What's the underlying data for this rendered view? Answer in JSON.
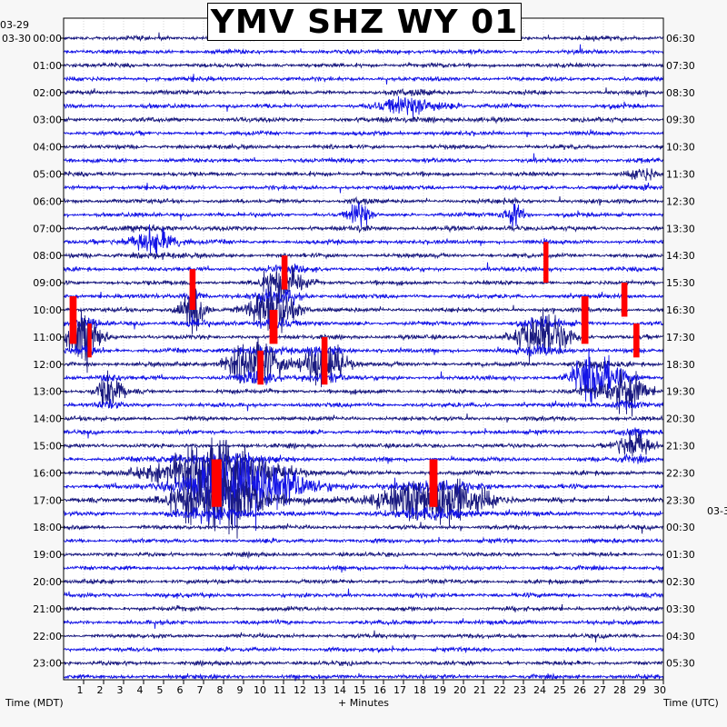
{
  "chart_data": {
    "type": "line",
    "title": "YMV SHZ WY 01",
    "xlabel": "+ Minutes",
    "left_axis_title": "Time (MDT)",
    "right_axis_title": "Time (UTC)",
    "x_ticks": [
      1,
      2,
      3,
      4,
      5,
      6,
      7,
      8,
      9,
      10,
      11,
      12,
      13,
      14,
      15,
      16,
      17,
      18,
      19,
      20,
      21,
      22,
      23,
      24,
      25,
      26,
      27,
      28,
      29,
      30
    ],
    "xlim": [
      0,
      30
    ],
    "left_date_labels": [
      "03-29",
      "03-30"
    ],
    "right_date_labels": [
      "03-3"
    ],
    "left_hour_labels": [
      "00:00",
      "01:00",
      "02:00",
      "03:00",
      "04:00",
      "05:00",
      "06:00",
      "07:00",
      "08:00",
      "09:00",
      "10:00",
      "11:00",
      "12:00",
      "13:00",
      "14:00",
      "15:00",
      "16:00",
      "17:00",
      "18:00",
      "19:00",
      "20:00",
      "21:00",
      "22:00",
      "23:00"
    ],
    "right_hour_labels": [
      "06:30",
      "07:30",
      "08:30",
      "09:30",
      "10:30",
      "11:30",
      "12:30",
      "13:30",
      "14:30",
      "15:30",
      "16:30",
      "17:30",
      "18:30",
      "19:30",
      "20:30",
      "21:30",
      "22:30",
      "23:30",
      "00:30",
      "01:30",
      "02:30",
      "03:30",
      "04:30",
      "05:30"
    ],
    "traces_per_hour": 2,
    "trace_colors": [
      "#1a1a80",
      "#1414e6"
    ],
    "clip_color": "#ff0000",
    "events": [
      {
        "hour": 2.5,
        "minute": 17.5,
        "width_min": 1.6,
        "amp": 1.0
      },
      {
        "hour": 5.0,
        "minute": 29.0,
        "width_min": 0.6,
        "amp": 0.8
      },
      {
        "hour": 6.5,
        "minute": 14.8,
        "width_min": 0.5,
        "amp": 1.5
      },
      {
        "hour": 6.5,
        "minute": 22.5,
        "width_min": 0.5,
        "amp": 1.3
      },
      {
        "hour": 7.5,
        "minute": 4.5,
        "width_min": 1.2,
        "amp": 1.4
      },
      {
        "hour": 9.0,
        "minute": 11.0,
        "width_min": 1.0,
        "amp": 2.0
      },
      {
        "hour": 10.0,
        "minute": 6.5,
        "width_min": 0.6,
        "amp": 3.0
      },
      {
        "hour": 10.0,
        "minute": 10.5,
        "width_min": 1.0,
        "amp": 3.5
      },
      {
        "hour": 11.0,
        "minute": 1.0,
        "width_min": 0.8,
        "amp": 3.0
      },
      {
        "hour": 11.0,
        "minute": 24.0,
        "width_min": 1.2,
        "amp": 3.0
      },
      {
        "hour": 12.0,
        "minute": 9.5,
        "width_min": 1.2,
        "amp": 3.0
      },
      {
        "hour": 12.0,
        "minute": 13.0,
        "width_min": 1.0,
        "amp": 3.0
      },
      {
        "hour": 12.5,
        "minute": 26.5,
        "width_min": 1.0,
        "amp": 3.0
      },
      {
        "hour": 13.0,
        "minute": 2.3,
        "width_min": 0.6,
        "amp": 2.0
      },
      {
        "hour": 13.0,
        "minute": 28.2,
        "width_min": 0.8,
        "amp": 2.5
      },
      {
        "hour": 15.0,
        "minute": 28.5,
        "width_min": 0.8,
        "amp": 1.8
      },
      {
        "hour": 16.0,
        "minute": 7.5,
        "width_min": 2.5,
        "amp": 3.5
      },
      {
        "hour": 16.5,
        "minute": 9.5,
        "width_min": 2.5,
        "amp": 3.0
      },
      {
        "hour": 17.0,
        "minute": 18.5,
        "width_min": 2.5,
        "amp": 3.0
      },
      {
        "hour": 17.0,
        "minute": 7.5,
        "width_min": 2.0,
        "amp": 3.5
      }
    ],
    "clipped_segments": [
      {
        "hour": 10.0,
        "minute": 0.3,
        "width_min": 0.35,
        "rows": 3.5
      },
      {
        "hour": 11.0,
        "minute": 1.2,
        "width_min": 0.2,
        "rows": 2.5
      },
      {
        "hour": 9.0,
        "minute": 6.3,
        "width_min": 0.3,
        "rows": 3.0
      },
      {
        "hour": 8.5,
        "minute": 10.9,
        "width_min": 0.3,
        "rows": 2.5
      },
      {
        "hour": 10.5,
        "minute": 10.3,
        "width_min": 0.4,
        "rows": 2.5
      },
      {
        "hour": 12.0,
        "minute": 9.7,
        "width_min": 0.3,
        "rows": 2.5
      },
      {
        "hour": 11.5,
        "minute": 12.9,
        "width_min": 0.3,
        "rows": 3.5
      },
      {
        "hour": 8.0,
        "minute": 24.0,
        "width_min": 0.25,
        "rows": 3.0
      },
      {
        "hour": 10.0,
        "minute": 25.9,
        "width_min": 0.35,
        "rows": 3.5
      },
      {
        "hour": 9.5,
        "minute": 27.9,
        "width_min": 0.3,
        "rows": 2.5
      },
      {
        "hour": 11.0,
        "minute": 28.5,
        "width_min": 0.3,
        "rows": 2.5
      },
      {
        "hour": 16.0,
        "minute": 7.4,
        "width_min": 0.5,
        "rows": 3.5
      },
      {
        "hour": 16.0,
        "minute": 18.3,
        "width_min": 0.4,
        "rows": 3.5
      }
    ]
  }
}
